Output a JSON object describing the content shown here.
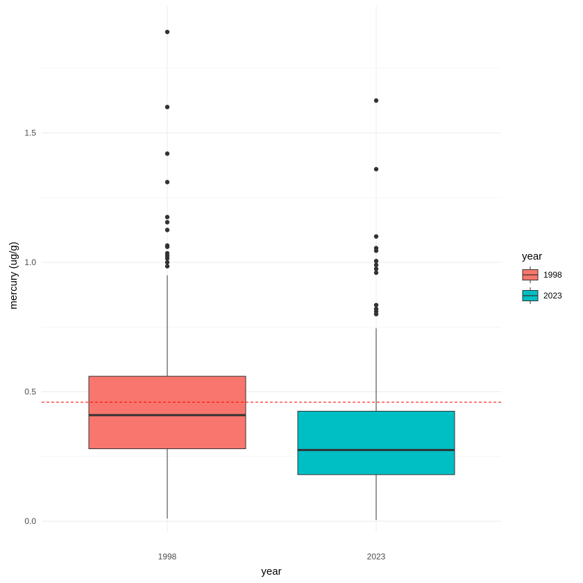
{
  "chart_data": {
    "type": "boxplot",
    "xlabel": "year",
    "ylabel": "mercury (ug/g)",
    "categories": [
      "1998",
      "2023"
    ],
    "ylim": [
      -0.05,
      1.93
    ],
    "yticks": [
      0.0,
      0.5,
      1.0,
      1.5
    ],
    "ytick_labels": [
      "0.0",
      "0.5",
      "1.0",
      "1.5"
    ],
    "grid": true,
    "reference_line": {
      "y": 0.46,
      "color": "#ff0000",
      "style": "dashed"
    },
    "legend": {
      "title": "year",
      "position": "right",
      "entries": [
        {
          "label": "1998",
          "color": "#f8766d"
        },
        {
          "label": "2023",
          "color": "#00bfc4"
        }
      ]
    },
    "boxes": [
      {
        "category": "1998",
        "color": "#f8766d",
        "whisker_low": 0.01,
        "q1": 0.28,
        "median": 0.41,
        "q3": 0.56,
        "whisker_high": 0.95,
        "outliers": [
          1.89,
          1.6,
          1.42,
          1.31,
          1.175,
          1.155,
          1.125,
          1.065,
          1.06,
          1.035,
          1.025,
          1.015,
          1.0,
          0.985
        ]
      },
      {
        "category": "2023",
        "color": "#00bfc4",
        "whisker_low": 0.005,
        "q1": 0.18,
        "median": 0.275,
        "q3": 0.425,
        "whisker_high": 0.745,
        "outliers": [
          1.625,
          1.36,
          1.1,
          1.055,
          1.045,
          1.005,
          0.99,
          0.975,
          0.96,
          0.835,
          0.82,
          0.81,
          0.8
        ]
      }
    ]
  }
}
